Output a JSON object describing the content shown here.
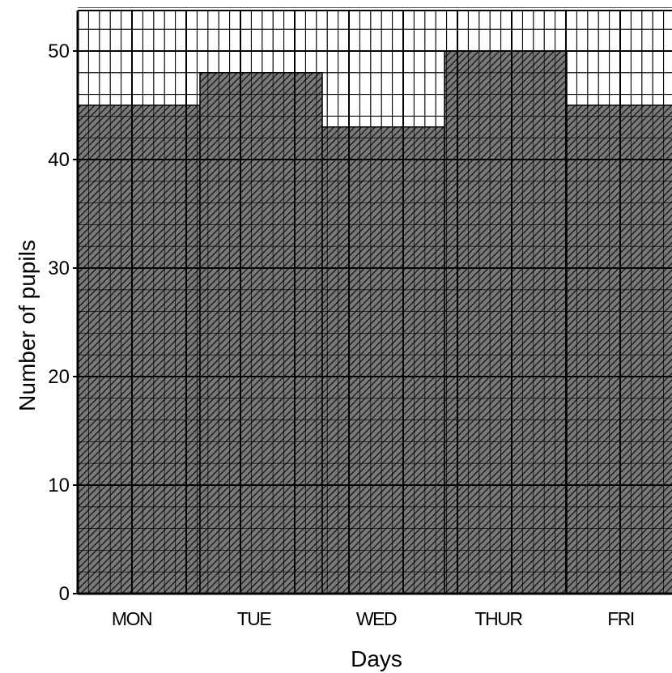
{
  "chart_data": {
    "type": "bar",
    "title": "",
    "xlabel": "Days",
    "ylabel": "Number of pupils",
    "categories": [
      "MON",
      "TUE",
      "WED",
      "THUR",
      "FRI"
    ],
    "values": [
      45,
      48,
      43,
      50,
      45
    ],
    "ylim": [
      0,
      54
    ],
    "yticks": [
      0,
      10,
      20,
      30,
      40,
      50
    ],
    "grid": true,
    "bar_fill": "diagonal-hatch"
  }
}
